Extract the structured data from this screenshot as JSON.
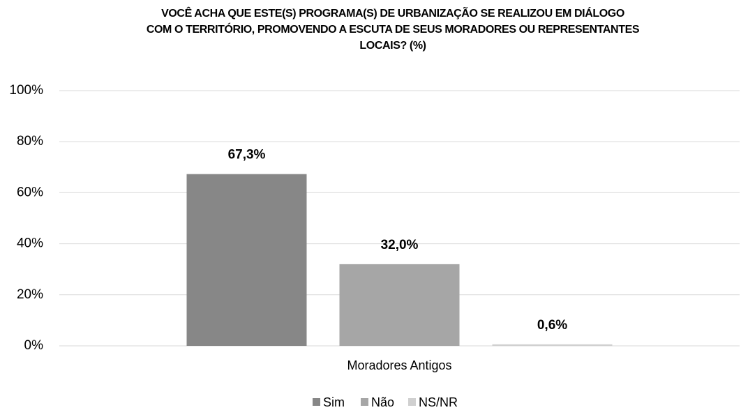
{
  "chart_data": {
    "type": "bar",
    "title": [
      "VOCÊ ACHA QUE ESTE(S) PROGRAMA(S) DE URBANIZAÇÃO SE REALIZOU EM DIÁLOGO",
      "COM O TERRITÓRIO, PROMOVENDO A ESCUTA DE SEUS MORADORES OU REPRESENTANTES",
      "LOCAIS? (%)"
    ],
    "categories": [
      "Moradores Antigos"
    ],
    "series": [
      {
        "name": "Sim",
        "color": "#878787",
        "values": [
          67.3
        ],
        "value_labels": [
          "67,3%"
        ]
      },
      {
        "name": "Não",
        "color": "#a6a6a6",
        "values": [
          32.0
        ],
        "value_labels": [
          "32,0%"
        ]
      },
      {
        "name": "NS/NR",
        "color": "#d0d0d0",
        "values": [
          0.6
        ],
        "value_labels": [
          "0,6%"
        ]
      }
    ],
    "ylim": [
      0,
      100
    ],
    "yticks": [
      {
        "value": 0,
        "label": "0%"
      },
      {
        "value": 20,
        "label": "20%"
      },
      {
        "value": 40,
        "label": "40%"
      },
      {
        "value": 60,
        "label": "60%"
      },
      {
        "value": 80,
        "label": "80%"
      },
      {
        "value": 100,
        "label": "100%"
      }
    ],
    "grid": true,
    "legend": "bottom"
  }
}
